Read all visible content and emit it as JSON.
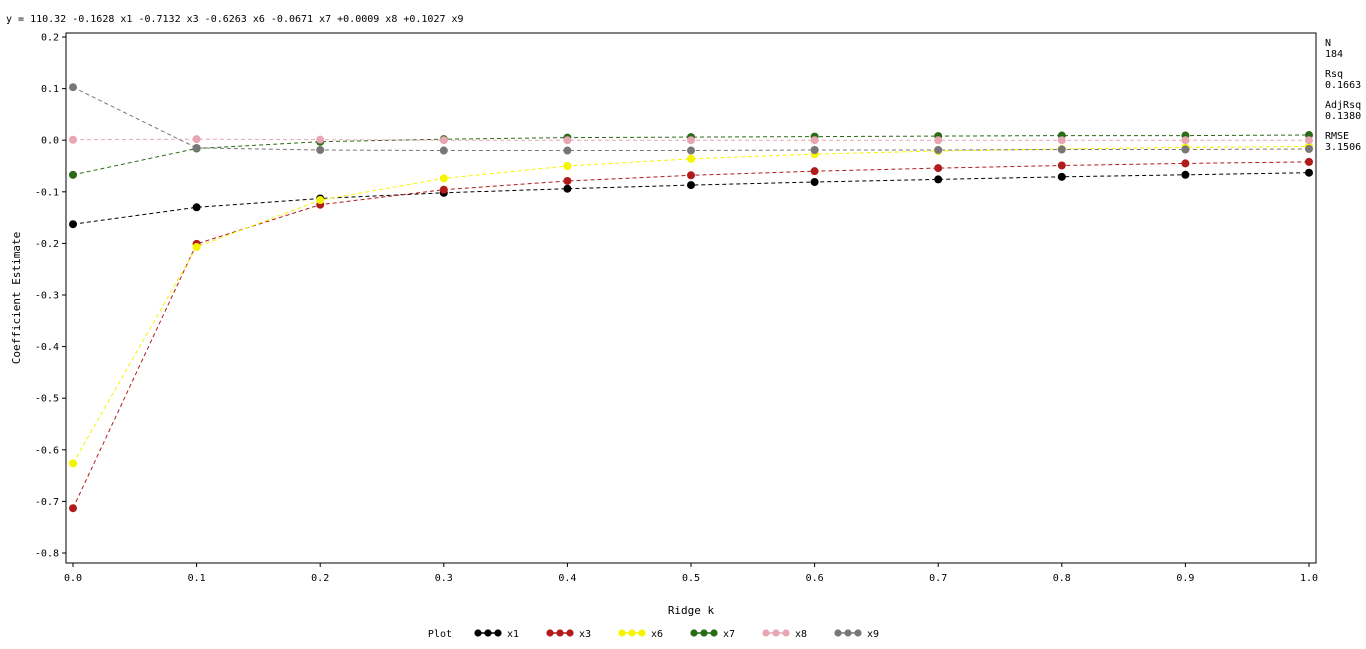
{
  "chart_data": {
    "type": "line",
    "title": "y = 110.32 -0.1628 x1 -0.7132 x3 -0.6263 x6 -0.0671 x7 +0.0009 x8 +0.1027 x9",
    "xlabel": "Ridge k",
    "ylabel": "Coefficient Estimate",
    "x": [
      0.0,
      0.1,
      0.2,
      0.3,
      0.4,
      0.5,
      0.6,
      0.7,
      0.8,
      0.9,
      1.0
    ],
    "x_tick_labels": [
      "0.0",
      "0.1",
      "0.2",
      "0.3",
      "0.4",
      "0.5",
      "0.6",
      "0.7",
      "0.8",
      "0.9",
      "1.0"
    ],
    "xlim": [
      0.0,
      1.0
    ],
    "ylim": [
      -0.8,
      0.2
    ],
    "y_ticks": [
      0.2,
      0.1,
      0.0,
      -0.1,
      -0.2,
      -0.3,
      -0.4,
      -0.5,
      -0.6,
      -0.7,
      -0.8
    ],
    "y_tick_labels": [
      "0.2",
      "0.1",
      "0.0",
      "-0.1",
      "-0.2",
      "-0.3",
      "-0.4",
      "-0.5",
      "-0.6",
      "-0.7",
      "-0.8"
    ],
    "grid": false,
    "legend_placement": "bottom",
    "legend_title": "Plot",
    "series": [
      {
        "name": "x1",
        "color": "#000000",
        "values": [
          -0.1628,
          -0.13,
          -0.113,
          -0.102,
          -0.094,
          -0.087,
          -0.081,
          -0.076,
          -0.071,
          -0.067,
          -0.063
        ]
      },
      {
        "name": "x3",
        "color": "#b01c1c",
        "values": [
          -0.7132,
          -0.201,
          -0.125,
          -0.096,
          -0.079,
          -0.068,
          -0.06,
          -0.054,
          -0.049,
          -0.045,
          -0.042
        ]
      },
      {
        "name": "x6",
        "color": "#f5f500",
        "values": [
          -0.6263,
          -0.207,
          -0.116,
          -0.074,
          -0.05,
          -0.036,
          -0.027,
          -0.021,
          -0.017,
          -0.014,
          -0.012
        ]
      },
      {
        "name": "x7",
        "color": "#2a6b16",
        "values": [
          -0.0671,
          -0.016,
          -0.003,
          0.002,
          0.005,
          0.006,
          0.007,
          0.008,
          0.009,
          0.009,
          0.01
        ]
      },
      {
        "name": "x8",
        "color": "#e8a6b3",
        "values": [
          0.0009,
          0.002,
          0.001,
          0.0,
          0.0,
          0.0,
          0.0,
          0.0,
          0.0,
          0.0,
          0.0
        ]
      },
      {
        "name": "x9",
        "color": "#777777",
        "values": [
          0.1027,
          -0.015,
          -0.019,
          -0.02,
          -0.02,
          -0.02,
          -0.019,
          -0.019,
          -0.018,
          -0.018,
          -0.017
        ]
      }
    ],
    "stats": [
      {
        "label": "N",
        "value": "184"
      },
      {
        "label": "Rsq",
        "value": "0.1663"
      },
      {
        "label": "AdjRsq",
        "value": "0.1380"
      },
      {
        "label": "RMSE",
        "value": "3.1506"
      }
    ]
  }
}
